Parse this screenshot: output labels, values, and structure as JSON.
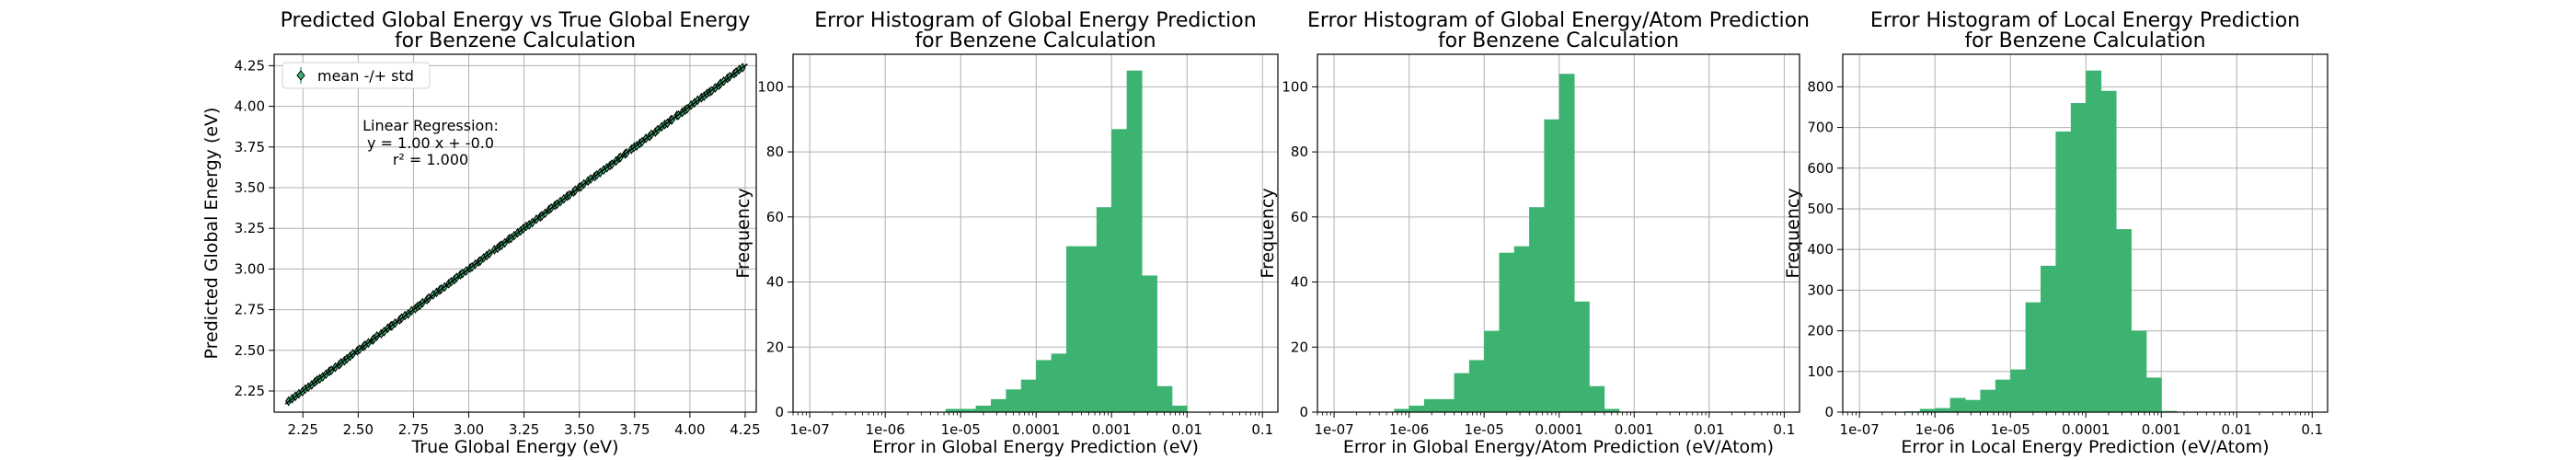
{
  "chart_data": [
    {
      "type": "scatter",
      "title_lines": [
        "Predicted Global Energy vs True Global Energy",
        "for Benzene Calculation"
      ],
      "xlabel": "True Global Energy (eV)",
      "ylabel": "Predicted Global Energy (eV)",
      "xlim": [
        2.12,
        4.3
      ],
      "ylim": [
        2.12,
        4.32
      ],
      "xticks": [
        2.25,
        2.5,
        2.75,
        3.0,
        3.25,
        3.5,
        3.75,
        4.0,
        4.25
      ],
      "xtick_labels": [
        "2.25",
        "2.50",
        "2.75",
        "3.00",
        "3.25",
        "3.50",
        "3.75",
        "4.00",
        "4.25"
      ],
      "yticks": [
        2.25,
        2.5,
        2.75,
        3.0,
        3.25,
        3.5,
        3.75,
        4.0,
        4.25
      ],
      "ytick_labels": [
        "2.25",
        "2.50",
        "2.75",
        "3.00",
        "3.25",
        "3.50",
        "3.75",
        "4.00",
        "4.25"
      ],
      "grid": true,
      "legend": {
        "label": "mean -/+ std",
        "placement": "top-left"
      },
      "annotation_lines": [
        "Linear Regression:",
        "y = 1.00 x + -0.0",
        "r² = 1.000"
      ],
      "fit": {
        "slope": 1.0,
        "intercept": 0.0
      },
      "x_range": [
        2.19,
        4.24
      ],
      "point_count": 150,
      "error_std": 0.015,
      "colors": {
        "marker": "#3cb371",
        "edge": "#000000",
        "fit": "#000000"
      }
    },
    {
      "type": "bar",
      "title_lines": [
        "Error Histogram of Global Energy Prediction",
        "for Benzene Calculation"
      ],
      "xlabel": "Error in Global Energy Prediction (eV)",
      "ylabel": "Frequency",
      "xscale": "log",
      "xlim": [
        6e-08,
        0.16
      ],
      "ylim": [
        0,
        110
      ],
      "xticks": [
        1e-07,
        1e-06,
        1e-05,
        0.0001,
        0.001,
        0.01,
        0.1
      ],
      "xtick_labels": [
        "1e-07",
        "1e-06",
        "1e-05",
        "0.0001",
        "0.001",
        "0.01",
        "0.1"
      ],
      "yticks": [
        0,
        20,
        40,
        60,
        80,
        100
      ],
      "ytick_labels": [
        "0",
        "20",
        "40",
        "60",
        "80",
        "100"
      ],
      "grid": true,
      "bin_edges_log10": [
        -5.2,
        -5.0,
        -4.8,
        -4.6,
        -4.4,
        -4.2,
        -4.0,
        -3.8,
        -3.6,
        -3.4,
        -3.2,
        -3.0,
        -2.8,
        -2.6,
        -2.4,
        -2.2,
        -2.0
      ],
      "values": [
        1,
        1,
        2,
        4,
        7,
        10,
        16,
        18,
        51,
        51,
        63,
        87,
        105,
        42,
        8,
        2
      ],
      "colors": {
        "bar": "#3cb371"
      }
    },
    {
      "type": "bar",
      "title_lines": [
        "Error Histogram of Global Energy/Atom Prediction",
        "for Benzene Calculation"
      ],
      "xlabel": "Error in Global Energy/Atom Prediction (eV/Atom)",
      "ylabel": "Frequency",
      "xscale": "log",
      "xlim": [
        6e-08,
        0.16
      ],
      "ylim": [
        0,
        110
      ],
      "xticks": [
        1e-07,
        1e-06,
        1e-05,
        0.0001,
        0.001,
        0.01,
        0.1
      ],
      "xtick_labels": [
        "1e-07",
        "1e-06",
        "1e-05",
        "0.0001",
        "0.001",
        "0.01",
        "0.1"
      ],
      "yticks": [
        0,
        20,
        40,
        60,
        80,
        100
      ],
      "ytick_labels": [
        "0",
        "20",
        "40",
        "60",
        "80",
        "100"
      ],
      "grid": true,
      "bin_edges_log10": [
        -6.2,
        -6.0,
        -5.8,
        -5.6,
        -5.4,
        -5.2,
        -5.0,
        -4.8,
        -4.6,
        -4.4,
        -4.2,
        -4.0,
        -3.8,
        -3.6,
        -3.4,
        -3.2
      ],
      "values": [
        1,
        2,
        4,
        4,
        12,
        16,
        25,
        49,
        51,
        63,
        90,
        104,
        34,
        8,
        1
      ],
      "colors": {
        "bar": "#3cb371"
      }
    },
    {
      "type": "bar",
      "title_lines": [
        "Error Histogram of Local Energy Prediction",
        "for Benzene Calculation"
      ],
      "xlabel": "Error in Local Energy Prediction (eV/Atom)",
      "ylabel": "Frequency",
      "xscale": "log",
      "xlim": [
        6e-08,
        0.16
      ],
      "ylim": [
        0,
        880
      ],
      "xticks": [
        1e-07,
        1e-06,
        1e-05,
        0.0001,
        0.001,
        0.01,
        0.1
      ],
      "xtick_labels": [
        "1e-07",
        "1e-06",
        "1e-05",
        "0.0001",
        "0.001",
        "0.01",
        "0.1"
      ],
      "yticks": [
        0,
        100,
        200,
        300,
        400,
        500,
        600,
        700,
        800
      ],
      "ytick_labels": [
        "0",
        "100",
        "200",
        "300",
        "400",
        "500",
        "600",
        "700",
        "800"
      ],
      "grid": true,
      "bin_edges_log10": [
        -6.4,
        -6.2,
        -6.0,
        -5.8,
        -5.6,
        -5.4,
        -5.2,
        -5.0,
        -4.8,
        -4.6,
        -4.4,
        -4.2,
        -4.0,
        -3.8,
        -3.6,
        -3.4,
        -3.2,
        -3.0,
        -2.8,
        -2.6
      ],
      "values": [
        2,
        8,
        10,
        35,
        30,
        55,
        80,
        105,
        270,
        360,
        690,
        760,
        840,
        790,
        450,
        200,
        85,
        3,
        1
      ],
      "colors": {
        "bar": "#3cb371"
      }
    }
  ]
}
